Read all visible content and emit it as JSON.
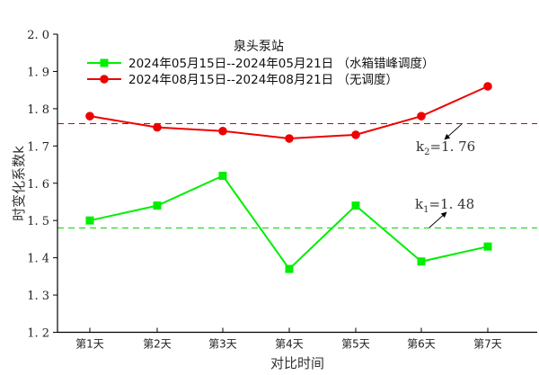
{
  "chart_data": {
    "type": "line",
    "title": "泉头泵站",
    "xlabel": "对比时间",
    "ylabel": "时变化系数k",
    "categories": [
      "第1天",
      "第2天",
      "第3天",
      "第4天",
      "第5天",
      "第6天",
      "第7天"
    ],
    "ylim": [
      1.2,
      2.0
    ],
    "yticks": [
      "1.2",
      "1.3",
      "1.4",
      "1.5",
      "1.6",
      "1.7",
      "1.8",
      "1.9",
      "2.0"
    ],
    "grid": false,
    "legend_position": "top-center",
    "series": [
      {
        "name": "2024年05月15日--2024年05月21日（水箱错峰调度）",
        "color": "#00ee00",
        "marker": "square",
        "values": [
          1.5,
          1.54,
          1.62,
          1.37,
          1.54,
          1.39,
          1.43
        ]
      },
      {
        "name": "2024年08月15日--2024年08月21日（无调度）",
        "color": "#ee0000",
        "marker": "circle",
        "values": [
          1.78,
          1.75,
          1.74,
          1.72,
          1.73,
          1.78,
          1.86
        ]
      }
    ],
    "reference_lines": [
      {
        "label": "k2=1.76",
        "value": 1.76,
        "color": "#cc0000",
        "style": "dashed"
      },
      {
        "label": "k1=1.48",
        "value": 1.48,
        "color": "#00dd00",
        "style": "dashed"
      }
    ],
    "annotations": [
      {
        "text": "k",
        "sub": "2",
        "value_text": "=1. 76"
      },
      {
        "text": "k",
        "sub": "1",
        "value_text": "=1. 48"
      }
    ]
  }
}
